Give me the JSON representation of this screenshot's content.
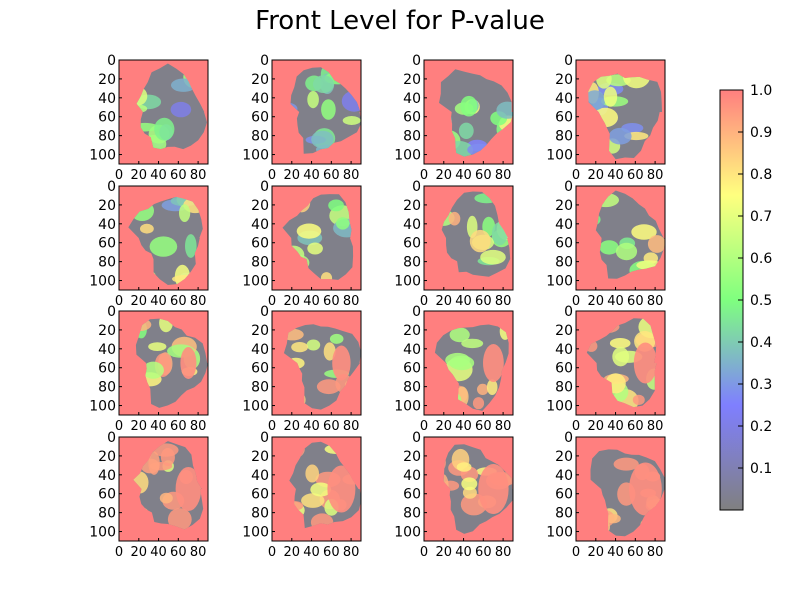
{
  "chart_data": {
    "type": "heatmap",
    "title": "Front Level for P-value",
    "grid": {
      "rows": 4,
      "cols": 4
    },
    "panel_count": 16,
    "x_ticks": [
      "0",
      "20",
      "40",
      "60",
      "80"
    ],
    "y_ticks": [
      "0",
      "20",
      "40",
      "60",
      "80",
      "100"
    ],
    "xlim": [
      0,
      90
    ],
    "ylim": [
      110,
      0
    ],
    "colorbar": {
      "ticks": [
        "0.1",
        "0.2",
        "0.3",
        "0.4",
        "0.5",
        "0.6",
        "0.7",
        "0.8",
        "0.9",
        "1.0"
      ],
      "range": [
        0,
        1.0
      ],
      "colors": [
        "#808080",
        "#7f7fff",
        "#7fff7f",
        "#ffff7f",
        "#ff7f7f"
      ],
      "background_value": 1.0
    }
  }
}
